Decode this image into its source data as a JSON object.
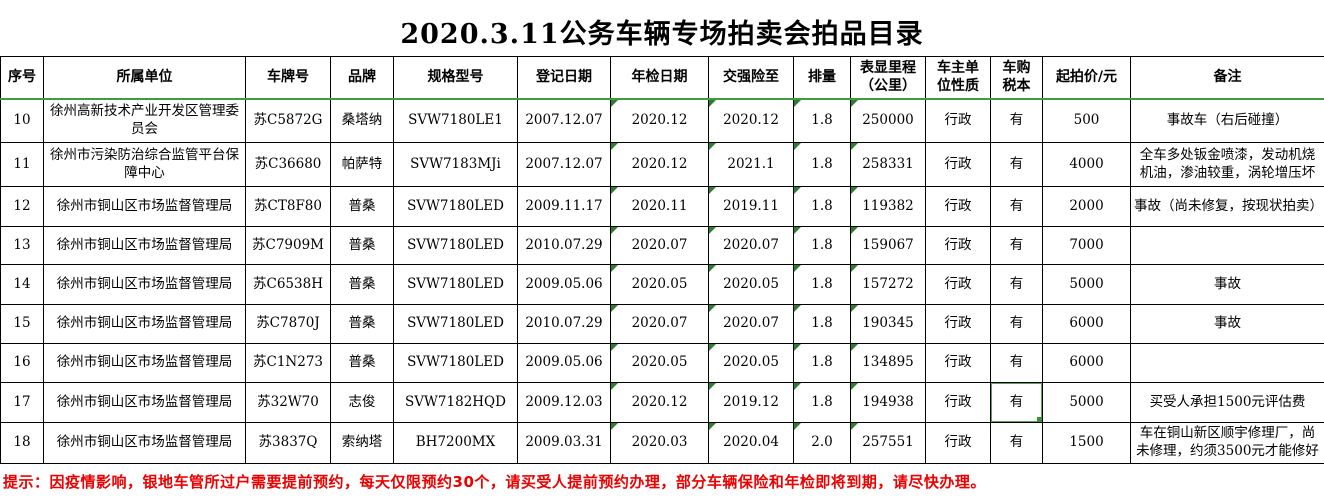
{
  "title": "2020.3.11公务车辆专场拍卖会拍品目录",
  "table": {
    "columns": [
      {
        "key": "index",
        "label": "序号"
      },
      {
        "key": "unit",
        "label": "所属单位"
      },
      {
        "key": "plate",
        "label": "车牌号"
      },
      {
        "key": "brand",
        "label": "品牌"
      },
      {
        "key": "model",
        "label": "规格型号"
      },
      {
        "key": "reg_date",
        "label": "登记日期"
      },
      {
        "key": "inspection_date",
        "label": "年检日期"
      },
      {
        "key": "insurance_until",
        "label": "交强险至"
      },
      {
        "key": "displacement",
        "label": "排量"
      },
      {
        "key": "mileage",
        "label": "表显里程\n（公里）"
      },
      {
        "key": "owner_type",
        "label": "车主单\n位性质"
      },
      {
        "key": "tax_book",
        "label": "车购\n税本"
      },
      {
        "key": "start_price",
        "label": "起拍价/元"
      },
      {
        "key": "remarks",
        "label": "备注"
      }
    ],
    "rows": [
      [
        "10",
        "徐州高新技术产业开发区管理委员会",
        "苏C5872G",
        "桑塔纳",
        "SVW7180LE1",
        "2007.12.07",
        "2020.12",
        "2020.12",
        "1.8",
        "250000",
        "行政",
        "有",
        "500",
        "事故车（右后碰撞）"
      ],
      [
        "11",
        "徐州市污染防治综合监管平台保障中心",
        "苏C36680",
        "帕萨特",
        "SVW7183MJi",
        "2007.12.07",
        "2020.12",
        "2021.1",
        "1.8",
        "258331",
        "行政",
        "有",
        "4000",
        "全车多处钣金喷漆，发动机烧机油，渗油较重，涡轮增压坏"
      ],
      [
        "12",
        "徐州市铜山区市场监督管理局",
        "苏CT8F80",
        "普桑",
        "SVW7180LED",
        "2009.11.17",
        "2020.11",
        "2019.11",
        "1.8",
        "119382",
        "行政",
        "有",
        "2000",
        "事故（尚未修复，按现状拍卖）"
      ],
      [
        "13",
        "徐州市铜山区市场监督管理局",
        "苏C7909M",
        "普桑",
        "SVW7180LED",
        "2010.07.29",
        "2020.07",
        "2020.07",
        "1.8",
        "159067",
        "行政",
        "有",
        "7000",
        ""
      ],
      [
        "14",
        "徐州市铜山区市场监督管理局",
        "苏C6538H",
        "普桑",
        "SVW7180LED",
        "2009.05.06",
        "2020.05",
        "2020.05",
        "1.8",
        "157272",
        "行政",
        "有",
        "5000",
        "事故"
      ],
      [
        "15",
        "徐州市铜山区市场监督管理局",
        "苏C7870J",
        "普桑",
        "SVW7180LED",
        "2010.07.29",
        "2020.07",
        "2020.07",
        "1.8",
        "190345",
        "行政",
        "有",
        "6000",
        "事故"
      ],
      [
        "16",
        "徐州市铜山区市场监督管理局",
        "苏C1N273",
        "普桑",
        "SVW7180LED",
        "2009.05.06",
        "2020.05",
        "2020.05",
        "1.8",
        "134895",
        "行政",
        "有",
        "6000",
        ""
      ],
      [
        "17",
        "徐州市铜山区市场监督管理局",
        "苏32W70",
        "志俊",
        "SVW7182HQD",
        "2009.12.03",
        "2020.12",
        "2019.12",
        "1.8",
        "194938",
        "行政",
        "有",
        "5000",
        "买受人承担1500元评估费"
      ],
      [
        "18",
        "徐州市铜山区市场监督管理局",
        "苏3837Q",
        "索纳塔",
        "BH7200MX",
        "2009.03.31",
        "2020.03",
        "2020.04",
        "2.0",
        "257551",
        "行政",
        "有",
        "1500",
        "车在铜山新区顺宇修理厂，尚未修理，约须3500元才能修好"
      ]
    ],
    "error_flag_columns": [
      "inspection_date",
      "insurance_until",
      "displacement",
      "mileage"
    ],
    "selection": {
      "row": "17",
      "column": "tax_book",
      "value": "有"
    }
  },
  "note": "提示：因疫情影响，银地车管所过户需要提前预约，每天仅限预约30个，请买受人提前预约办理，部分车辆保险和年检即将到期，请尽快办理。",
  "colors": {
    "grid": "#000000",
    "freeze_line": "#3f9c3f",
    "error_triangle": "#2e7d32",
    "selection_border": "#5ca452",
    "note_red": "#ee0000"
  }
}
